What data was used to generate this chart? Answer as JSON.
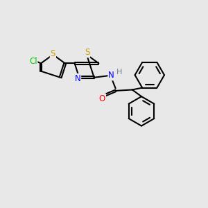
{
  "background_color": "#e8e8e8",
  "bond_color": "#000000",
  "atom_colors": {
    "S": "#c8a000",
    "N": "#0000ff",
    "O": "#ff0000",
    "Cl": "#00cc00",
    "H": "#708090",
    "C": "#000000"
  },
  "figsize": [
    3.0,
    3.0
  ],
  "dpi": 100,
  "xlim": [
    0,
    10
  ],
  "ylim": [
    0,
    10
  ]
}
